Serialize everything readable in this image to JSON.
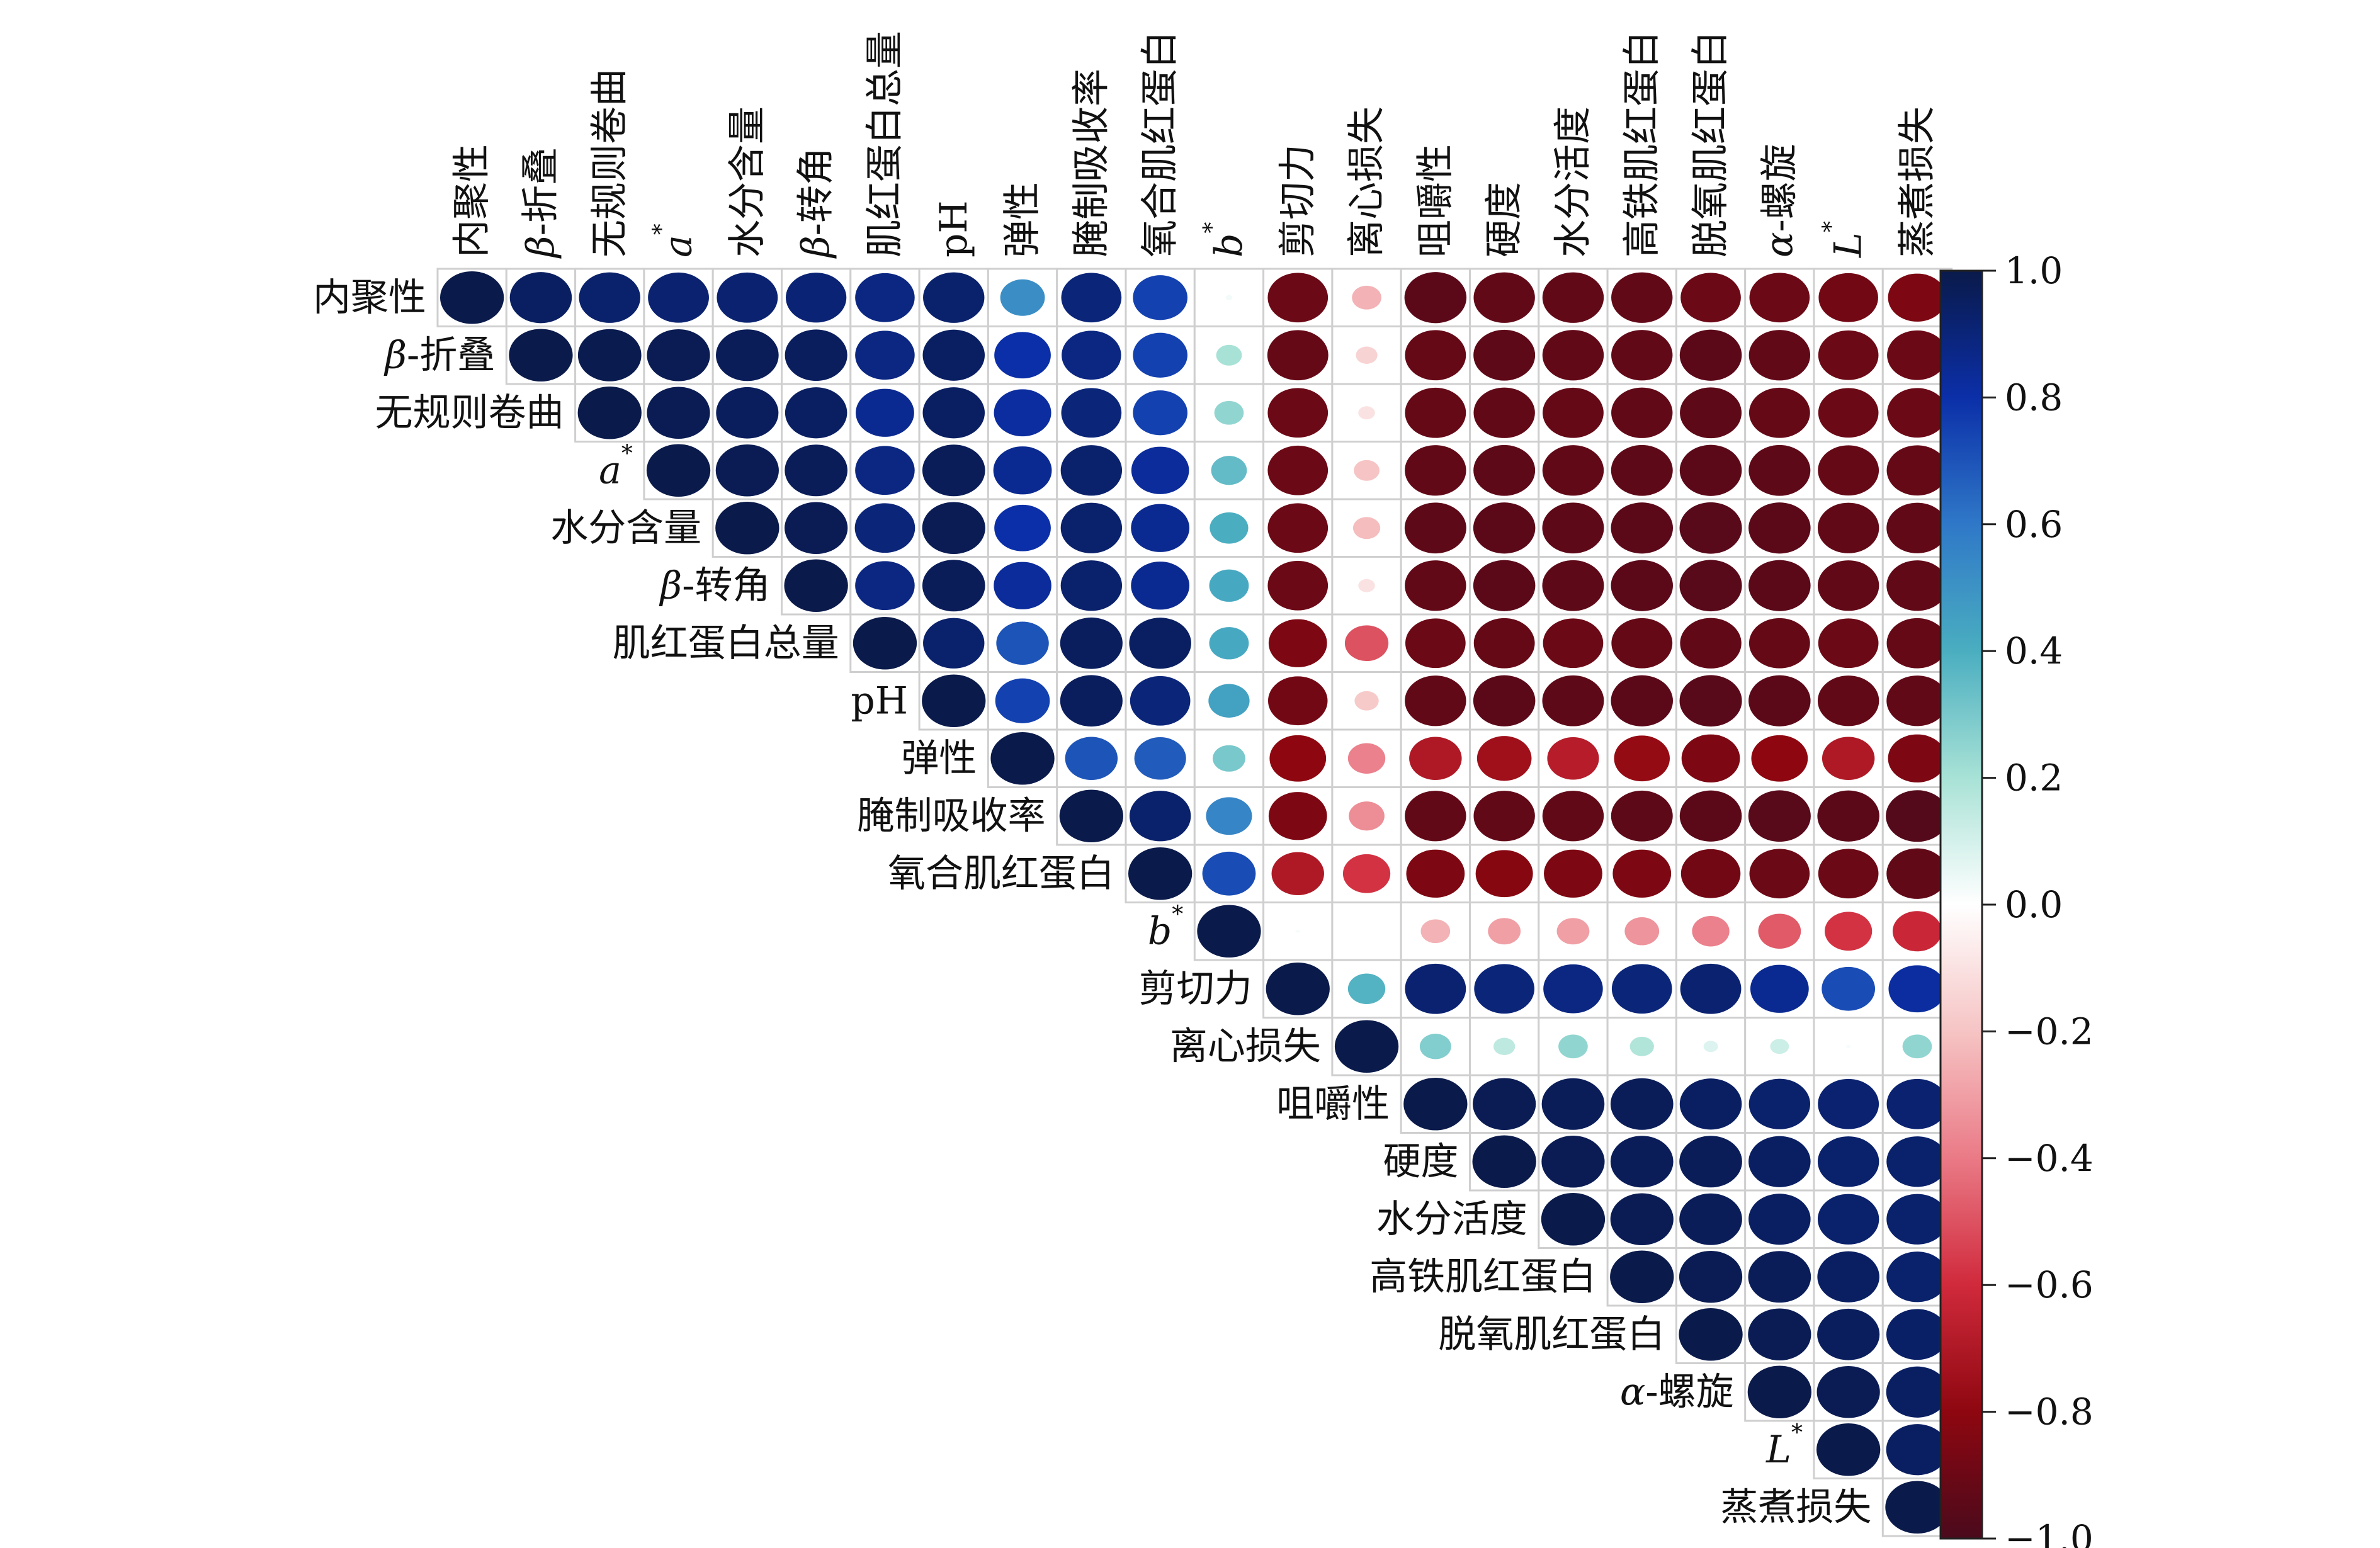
{
  "chart_data": {
    "type": "heatmap",
    "variant": "correlogram-upper-triangle-circles",
    "title": "",
    "variables": [
      {
        "text": "内聚性"
      },
      {
        "text": "β-折叠",
        "italic_prefix": "β"
      },
      {
        "text": "无规则卷曲"
      },
      {
        "text": "a*",
        "italic_prefix": "a",
        "superscript": "*"
      },
      {
        "text": "水分含量"
      },
      {
        "text": "β-转角",
        "italic_prefix": "β"
      },
      {
        "text": "肌红蛋白总量"
      },
      {
        "text": "pH"
      },
      {
        "text": "弹性"
      },
      {
        "text": "腌制吸收率"
      },
      {
        "text": "氧合肌红蛋白"
      },
      {
        "text": "b*",
        "italic_prefix": "b",
        "superscript": "*"
      },
      {
        "text": "剪切力"
      },
      {
        "text": "离心损失"
      },
      {
        "text": "咀嚼性"
      },
      {
        "text": "硬度"
      },
      {
        "text": "水分活度"
      },
      {
        "text": "高铁肌红蛋白"
      },
      {
        "text": "脱氧肌红蛋白"
      },
      {
        "text": "α-螺旋",
        "italic_prefix": "α"
      },
      {
        "text": "L*",
        "italic_prefix": "L",
        "superscript": "*"
      },
      {
        "text": "蒸煮损失"
      }
    ],
    "matrix_upper": [
      [
        1.0,
        0.95,
        0.93,
        0.92,
        0.92,
        0.91,
        0.88,
        0.93,
        0.52,
        0.9,
        0.75,
        0.03,
        -0.9,
        -0.25,
        -0.95,
        -0.93,
        -0.93,
        -0.93,
        -0.9,
        -0.9,
        -0.88,
        -0.85
      ],
      [
        1.0,
        0.99,
        0.98,
        0.97,
        0.96,
        0.88,
        0.95,
        0.8,
        0.88,
        0.75,
        0.2,
        -0.92,
        -0.15,
        -0.92,
        -0.94,
        -0.93,
        -0.93,
        -0.95,
        -0.93,
        -0.9,
        -0.9
      ],
      [
        1.0,
        0.98,
        0.96,
        0.95,
        0.85,
        0.95,
        0.82,
        0.9,
        0.75,
        0.25,
        -0.9,
        -0.1,
        -0.92,
        -0.93,
        -0.92,
        -0.93,
        -0.94,
        -0.92,
        -0.9,
        -0.9
      ],
      [
        1.0,
        0.98,
        0.97,
        0.88,
        0.97,
        0.85,
        0.93,
        0.83,
        0.35,
        -0.9,
        -0.2,
        -0.93,
        -0.94,
        -0.93,
        -0.94,
        -0.95,
        -0.94,
        -0.92,
        -0.92
      ],
      [
        1.0,
        0.98,
        0.9,
        0.98,
        0.8,
        0.93,
        0.85,
        0.4,
        -0.9,
        -0.22,
        -0.94,
        -0.95,
        -0.94,
        -0.95,
        -0.96,
        -0.95,
        -0.93,
        -0.93
      ],
      [
        1.0,
        0.88,
        0.97,
        0.83,
        0.93,
        0.85,
        0.42,
        -0.9,
        -0.1,
        -0.93,
        -0.95,
        -0.94,
        -0.95,
        -0.96,
        -0.95,
        -0.93,
        -0.93
      ],
      [
        1.0,
        0.93,
        0.7,
        0.96,
        0.95,
        0.42,
        -0.85,
        -0.5,
        -0.9,
        -0.92,
        -0.9,
        -0.92,
        -0.93,
        -0.92,
        -0.9,
        -0.92
      ],
      [
        1.0,
        0.75,
        0.96,
        0.9,
        0.45,
        -0.88,
        -0.18,
        -0.93,
        -0.95,
        -0.94,
        -0.95,
        -0.96,
        -0.95,
        -0.93,
        -0.93
      ],
      [
        1.0,
        0.7,
        0.68,
        0.3,
        -0.8,
        -0.38,
        -0.7,
        -0.75,
        -0.68,
        -0.78,
        -0.85,
        -0.8,
        -0.7,
        -0.85
      ],
      [
        1.0,
        0.93,
        0.55,
        -0.85,
        -0.35,
        -0.93,
        -0.93,
        -0.93,
        -0.94,
        -0.95,
        -0.96,
        -0.95,
        -0.97
      ],
      [
        1.0,
        0.72,
        -0.7,
        -0.58,
        -0.85,
        -0.82,
        -0.85,
        -0.85,
        -0.88,
        -0.9,
        -0.9,
        -0.93
      ],
      [
        1.0,
        0.02,
        0.0,
        -0.25,
        -0.3,
        -0.3,
        -0.33,
        -0.38,
        -0.48,
        -0.58,
        -0.62
      ],
      [
        1.0,
        0.38,
        0.92,
        0.9,
        0.88,
        0.9,
        0.92,
        0.85,
        0.72,
        0.82
      ],
      [
        1.0,
        0.28,
        0.15,
        0.25,
        0.18,
        0.08,
        0.12,
        0.02,
        0.25
      ],
      [
        1.0,
        0.98,
        0.97,
        0.97,
        0.95,
        0.93,
        0.92,
        0.92
      ],
      [
        1.0,
        0.98,
        0.97,
        0.97,
        0.95,
        0.93,
        0.93
      ],
      [
        1.0,
        0.98,
        0.97,
        0.95,
        0.93,
        0.93
      ],
      [
        1.0,
        0.98,
        0.97,
        0.95,
        0.93
      ],
      [
        1.0,
        0.98,
        0.96,
        0.94
      ],
      [
        1.0,
        0.98,
        0.95
      ],
      [
        1.0,
        0.95
      ],
      [
        1.0
      ]
    ],
    "colorbar": {
      "range": [
        -1.0,
        1.0
      ],
      "tick_values": [
        1.0,
        0.8,
        0.6,
        0.4,
        0.2,
        0.0,
        -0.2,
        -0.4,
        -0.6,
        -0.8,
        -1.0
      ],
      "tick_labels": [
        "1.0",
        "0.8",
        "0.6",
        "0.4",
        "0.2",
        "0.0",
        "−0.2",
        "−0.4",
        "−0.6",
        "−0.8",
        "−1.0"
      ],
      "colors": [
        "#0a1a4a",
        "#0b2fa8",
        "#2f78c8",
        "#4aaec0",
        "#a8e2d6",
        "#ffffff",
        "#f6c4c4",
        "#ea7a86",
        "#d02a3c",
        "#8e0710",
        "#4a0a1c"
      ],
      "placement": "right"
    },
    "legend": "none",
    "grid": true
  }
}
